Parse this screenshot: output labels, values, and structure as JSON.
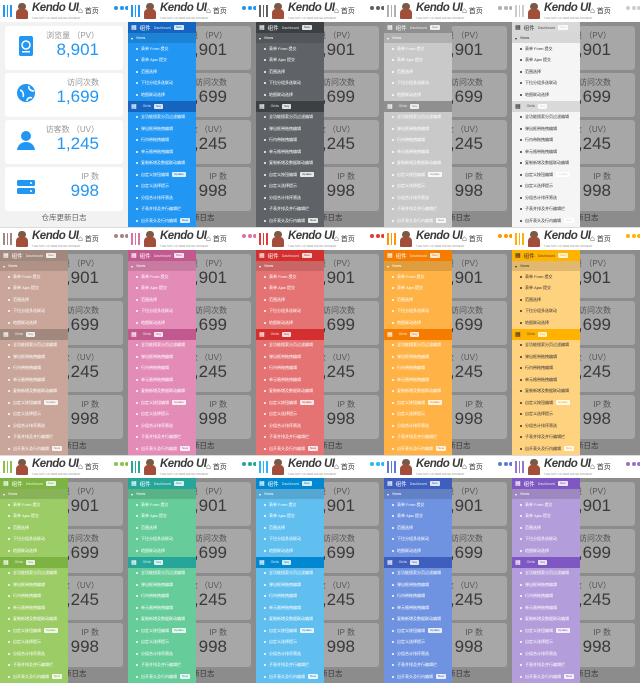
{
  "header": {
    "brand": "Kendo UI",
    "tagline": "THE ART OF WEB DEVELOPMENT",
    "home_label": "首页"
  },
  "stats": [
    {
      "title": "浏览量 （PV）",
      "value": "8,901",
      "icon": "passport-icon"
    },
    {
      "title": "访问次数",
      "value": "1,699",
      "icon": "globe-icon"
    },
    {
      "title": "访客数 （UV）",
      "value": "1,245",
      "icon": "user-icon"
    },
    {
      "title": "IP 数",
      "value": "998",
      "icon": "server-icon"
    }
  ],
  "logs_label": "仓库更新日志",
  "menu": {
    "section1": {
      "title": "组件",
      "subtitle": "Dashboard",
      "badge": "New"
    },
    "sub1": {
      "title": "Views"
    },
    "items1": [
      "表单 Form 提交",
      "表单 Ajax 提交",
      "范围选择",
      "下拉分组多选联动",
      "地图联动选择"
    ],
    "sub2": {
      "title": "Grids",
      "badge": "Say"
    },
    "items2": [
      {
        "text": "全功能搜索分页过滤编辑"
      },
      {
        "text": "弹出框带拖拽编辑"
      },
      {
        "text": "行内带拖拽编辑"
      },
      {
        "text": "单元格带拖拽编辑"
      },
      {
        "text": "复制新增及数据联动编辑"
      },
      {
        "text": "自定义按钮编辑",
        "badge": "Update"
      },
      {
        "text": "自定义选择提示"
      },
      {
        "text": "分组合计排序筛选"
      },
      {
        "text": "子表并排及并行编辑栏"
      },
      {
        "text": "自开表头及行内编辑",
        "badge": "New"
      }
    ]
  },
  "themes": [
    {
      "name": "default",
      "accent": "#2196f3"
    },
    {
      "name": "blue",
      "accent": "#2196f3",
      "menu_bg": "#2196f3",
      "menu_head": "#1565c0",
      "menu_text": "#ffffff"
    },
    {
      "name": "dark",
      "accent": "#616161",
      "menu_bg": "#5f6368",
      "menu_head": "#3c4043",
      "menu_text": "#ffffff"
    },
    {
      "name": "silver",
      "accent": "#b0b0b0",
      "menu_bg": "#c9c9c9",
      "menu_head": "#8f8f8f",
      "menu_text": "#ffffff"
    },
    {
      "name": "light",
      "accent": "#cccccc",
      "menu_bg": "#f5f5f5",
      "menu_head": "#d9d9d9",
      "menu_text": "#333333"
    },
    {
      "name": "brown",
      "accent": "#a1887f",
      "menu_bg": "#c9a699",
      "menu_head": "#a1887f",
      "menu_text": "#ffffff"
    },
    {
      "name": "pink",
      "accent": "#d973a0",
      "menu_bg": "#e48cb8",
      "menu_head": "#c2598e",
      "menu_text": "#ffffff"
    },
    {
      "name": "red",
      "accent": "#e53935",
      "menu_bg": "#e57373",
      "menu_head": "#d32f2f",
      "menu_text": "#ffffff"
    },
    {
      "name": "orange",
      "accent": "#ff9800",
      "menu_bg": "#ffb347",
      "menu_head": "#f57c00",
      "menu_text": "#ffffff"
    },
    {
      "name": "yellow",
      "accent": "#ffb300",
      "menu_bg": "#ffd27f",
      "menu_head": "#ffb300",
      "menu_text": "#333333"
    },
    {
      "name": "lime",
      "accent": "#8bc34a",
      "menu_bg": "#9ccc65",
      "menu_head": "#7cb342",
      "menu_text": "#ffffff"
    },
    {
      "name": "green",
      "accent": "#26a69a",
      "menu_bg": "#66cc99",
      "menu_head": "#26a69a",
      "menu_text": "#ffffff"
    },
    {
      "name": "sky",
      "accent": "#29b6f6",
      "menu_bg": "#61bff0",
      "menu_head": "#0288d1",
      "menu_text": "#ffffff"
    },
    {
      "name": "indigo",
      "accent": "#5c7bd9",
      "menu_bg": "#6f93e0",
      "menu_head": "#3f5fbf",
      "menu_text": "#ffffff"
    },
    {
      "name": "purple",
      "accent": "#9575cd",
      "menu_bg": "#b39ddb",
      "menu_head": "#7e57c2",
      "menu_text": "#ffffff"
    }
  ]
}
